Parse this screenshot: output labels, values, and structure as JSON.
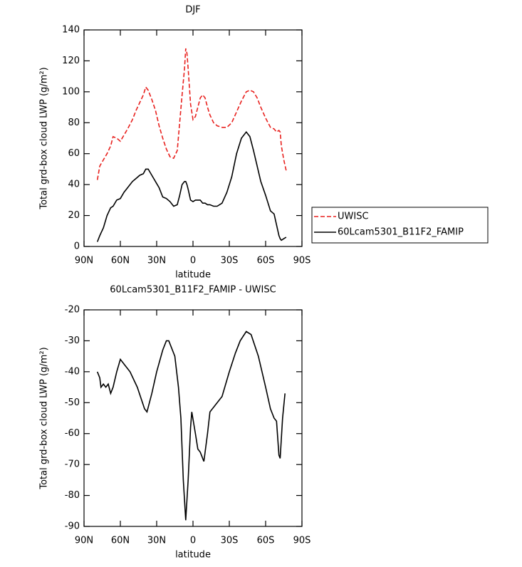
{
  "chart_data": [
    {
      "type": "line",
      "title": "DJF",
      "x_label": "latitude",
      "y_label": "Total grd-box cloud LWP (g/m²)",
      "x": [
        79,
        77,
        74,
        71,
        68,
        66,
        63,
        60,
        57,
        54,
        50,
        47,
        44,
        41,
        39,
        37,
        34,
        31,
        28,
        25,
        22,
        19,
        16,
        13,
        11,
        9,
        7,
        6,
        5,
        4,
        2,
        0,
        -2,
        -4,
        -6,
        -8,
        -10,
        -12,
        -14,
        -17,
        -20,
        -24,
        -28,
        -32,
        -36,
        -40,
        -44,
        -47,
        -50,
        -53,
        -56,
        -60,
        -64,
        -67,
        -69,
        -71,
        -72,
        -73,
        -75,
        -77
      ],
      "series": [
        {
          "name": "UWISC",
          "color": "#e8211e",
          "linestyle": "dashed",
          "values": [
            43,
            52,
            56,
            60,
            65,
            71,
            70,
            68,
            72,
            76,
            82,
            88,
            93,
            98,
            103,
            101,
            95,
            88,
            78,
            70,
            63,
            58,
            57,
            62,
            80,
            98,
            115,
            128,
            125,
            115,
            92,
            82,
            84,
            90,
            96,
            98,
            96,
            90,
            85,
            80,
            78,
            77,
            77,
            80,
            87,
            94,
            100,
            101,
            100,
            96,
            90,
            83,
            77,
            76,
            74,
            75,
            74,
            65,
            56,
            49
          ]
        },
        {
          "name": "60Lcam5301_B11F2_FAMIP",
          "color": "#000000",
          "linestyle": "solid",
          "values": [
            3,
            7,
            12,
            20,
            25,
            26,
            30,
            31,
            35,
            38,
            42,
            44,
            46,
            47,
            50,
            50,
            46,
            42,
            38,
            32,
            31,
            29,
            26,
            27,
            33,
            40,
            42,
            42,
            40,
            37,
            30,
            29,
            30,
            30,
            30,
            28,
            28,
            27,
            27,
            26,
            26,
            28,
            35,
            45,
            60,
            70,
            74,
            71,
            62,
            52,
            42,
            33,
            23,
            21,
            14,
            7,
            5,
            4,
            5,
            6
          ]
        }
      ],
      "xlim": [
        90,
        -90
      ],
      "xticks": [
        {
          "value": 90,
          "label": "90N"
        },
        {
          "value": 60,
          "label": "60N"
        },
        {
          "value": 30,
          "label": "30N"
        },
        0,
        {
          "value": -30,
          "label": "30S"
        },
        {
          "value": -60,
          "label": "60S"
        },
        {
          "value": -90,
          "label": "90S"
        }
      ],
      "ylim": [
        0,
        140
      ],
      "yticks": [
        0,
        20,
        40,
        60,
        80,
        100,
        120,
        140
      ]
    },
    {
      "type": "line",
      "title": "60Lcam5301_B11F2_FAMIP - UWISC",
      "x_label": "latitude",
      "y_label": "Total grd-box cloud LWP (g/m²)",
      "x": [
        79,
        77,
        76,
        74,
        72,
        70,
        68,
        66,
        63,
        60,
        56,
        52,
        46,
        40,
        38,
        34,
        30,
        25,
        22,
        20,
        15,
        12,
        10,
        8,
        6,
        4,
        2,
        1,
        -2,
        -4,
        -6,
        -9,
        -12,
        -14,
        -18,
        -24,
        -30,
        -35,
        -39,
        -44,
        -48,
        -54,
        -60,
        -64,
        -67,
        -69,
        -71,
        -72,
        -74,
        -76
      ],
      "series": [
        {
          "name": "60Lcam5301_B11F2_FAMIP - UWISC",
          "color": "#000000",
          "linestyle": "solid",
          "values": [
            -40,
            -42,
            -45,
            -44,
            -45,
            -44,
            -47,
            -45,
            -40,
            -36,
            -38,
            -40,
            -45,
            -52,
            -53,
            -47,
            -40,
            -33,
            -30,
            -30,
            -35,
            -45,
            -55,
            -75,
            -88,
            -75,
            -58,
            -53,
            -60,
            -65,
            -66,
            -69,
            -60,
            -53,
            -51,
            -48,
            -40,
            -34,
            -30,
            -27,
            -28,
            -35,
            -45,
            -52,
            -55,
            -56,
            -67,
            -68,
            -55,
            -47
          ]
        }
      ],
      "xlim": [
        90,
        -90
      ],
      "xticks": [
        {
          "value": 90,
          "label": "90N"
        },
        {
          "value": 60,
          "label": "60N"
        },
        {
          "value": 30,
          "label": "30N"
        },
        0,
        {
          "value": -30,
          "label": "30S"
        },
        {
          "value": -60,
          "label": "60S"
        },
        {
          "value": -90,
          "label": "90S"
        }
      ],
      "ylim": [
        -90,
        -20
      ],
      "yticks": [
        -90,
        -80,
        -70,
        -60,
        -50,
        -40,
        -30,
        -20
      ]
    }
  ]
}
